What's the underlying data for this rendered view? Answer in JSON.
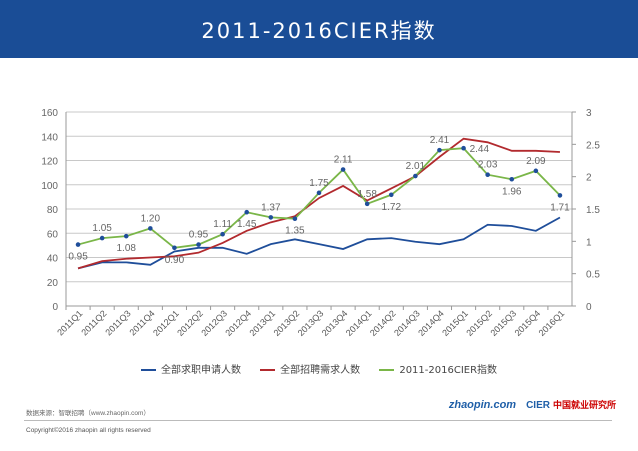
{
  "header": {
    "title": "2011-2016CIER指数"
  },
  "chart_data": {
    "type": "line",
    "categories": [
      "2011Q1",
      "2011Q2",
      "2011Q3",
      "2011Q4",
      "2012Q1",
      "2012Q2",
      "2012Q3",
      "2012Q4",
      "2013Q1",
      "2013Q2",
      "2013Q3",
      "2013Q4",
      "2014Q1",
      "2014Q2",
      "2014Q3",
      "2014Q4",
      "2015Q1",
      "2015Q2",
      "2015Q3",
      "2015Q4",
      "2016Q1"
    ],
    "y_left": {
      "range": [
        0,
        160
      ],
      "ticks": [
        "0",
        "20",
        "40",
        "60",
        "80",
        "100",
        "120",
        "140",
        "160"
      ]
    },
    "y_right": {
      "range": [
        0,
        3
      ],
      "ticks": [
        "0",
        "0.5",
        "1",
        "1.5",
        "2",
        "2.5",
        "3"
      ]
    },
    "grid": true,
    "legend_position": "bottom",
    "series": [
      {
        "name": "全部求职申请人数",
        "axis": "left",
        "color": "#1f4e9a",
        "values": [
          31,
          36,
          36,
          34,
          45,
          48,
          48,
          43,
          51,
          55,
          51,
          47,
          55,
          56,
          53,
          51,
          55,
          67,
          66,
          62,
          73
        ]
      },
      {
        "name": "全部招聘需求人数",
        "axis": "left",
        "color": "#b22a2e",
        "values": [
          31,
          37,
          39,
          40,
          41,
          44,
          52,
          62,
          69,
          74,
          89,
          99,
          87,
          97,
          107,
          123,
          138,
          135,
          128,
          128,
          127
        ]
      },
      {
        "name": "2011-2016CIER指数",
        "axis": "right",
        "color": "#7ab648",
        "marker_color": "#1f4e9a",
        "values": [
          0.95,
          1.05,
          1.08,
          1.2,
          0.9,
          0.95,
          1.11,
          1.45,
          1.37,
          1.35,
          1.75,
          2.11,
          1.58,
          1.72,
          2.01,
          2.41,
          2.44,
          2.03,
          1.96,
          2.09,
          1.71
        ],
        "labels": [
          "0.95",
          "1.05",
          "1.08",
          "1.20",
          "0.90",
          "0.95",
          "1.11",
          "1.45",
          "1.37",
          "1.35",
          "1.75",
          "2.11",
          "1.58",
          "1.72",
          "2.01",
          "2.41",
          "2.44",
          "2.03",
          "1.96",
          "2.09",
          "1.71"
        ]
      }
    ]
  },
  "footer": {
    "source": "数据来源：智联招聘（www.zhaopin.com）",
    "copyright": "Copyright©2016 zhaopin all rights reserved",
    "logo_zhaopin": "zhaopin.com 智联招聘",
    "logo_cier": "CIER",
    "logo_cier_cn": "中国就业研究所"
  }
}
